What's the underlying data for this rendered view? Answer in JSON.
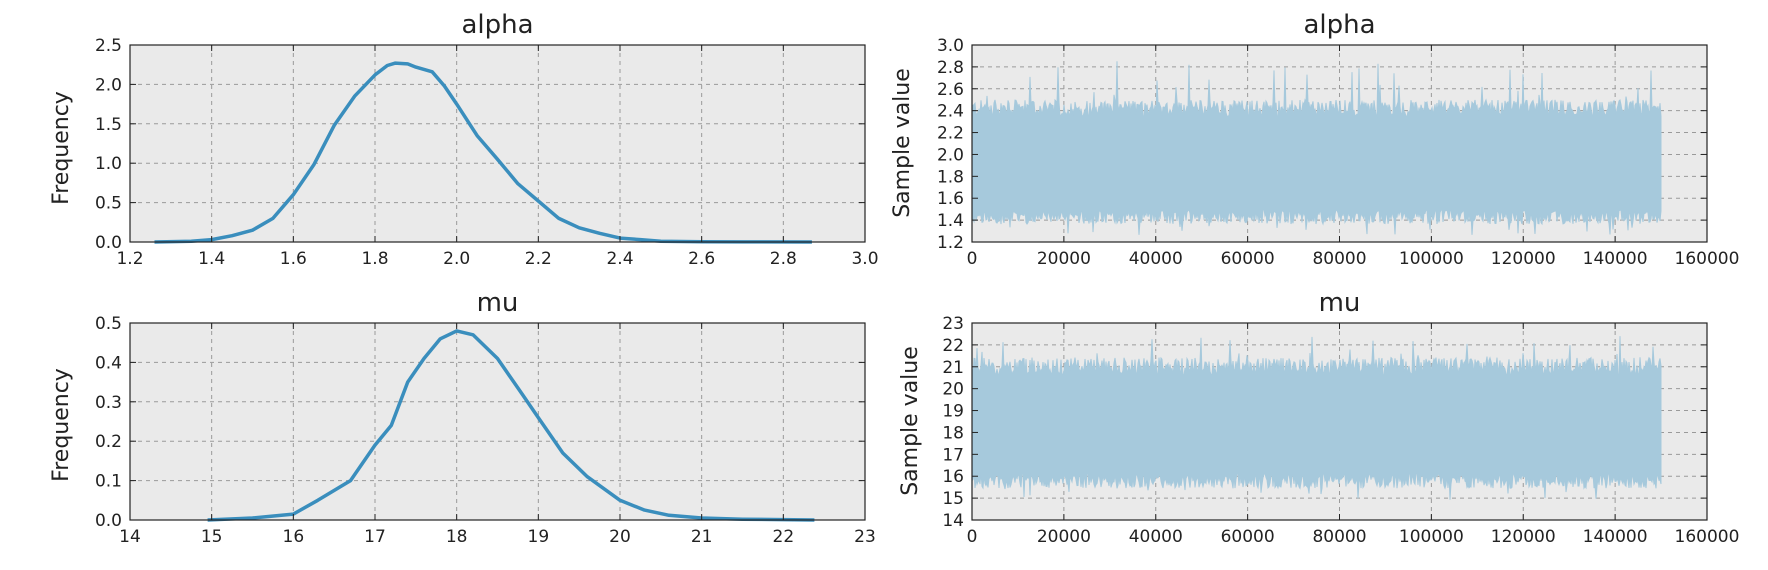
{
  "chart_data": [
    {
      "type": "line",
      "title": "alpha",
      "xlabel": "",
      "ylabel": "Frequency",
      "xlim": [
        1.2,
        3.0
      ],
      "ylim": [
        0.0,
        2.5
      ],
      "xticks": [
        "1.2",
        "1.4",
        "1.6",
        "1.8",
        "2.0",
        "2.2",
        "2.4",
        "2.6",
        "2.8",
        "3.0"
      ],
      "yticks": [
        "0.0",
        "0.5",
        "1.0",
        "1.5",
        "2.0",
        "2.5"
      ],
      "grid": true,
      "series": [
        {
          "color": "#3a8ebd",
          "x": [
            1.26,
            1.35,
            1.4,
            1.45,
            1.5,
            1.55,
            1.6,
            1.65,
            1.7,
            1.75,
            1.8,
            1.83,
            1.85,
            1.88,
            1.9,
            1.94,
            1.97,
            2.0,
            2.05,
            2.1,
            2.15,
            2.2,
            2.25,
            2.3,
            2.35,
            2.4,
            2.45,
            2.5,
            2.6,
            2.7,
            2.87
          ],
          "y": [
            0.0,
            0.01,
            0.03,
            0.08,
            0.15,
            0.3,
            0.6,
            0.98,
            1.48,
            1.85,
            2.12,
            2.24,
            2.27,
            2.26,
            2.22,
            2.16,
            1.98,
            1.75,
            1.35,
            1.05,
            0.74,
            0.52,
            0.3,
            0.18,
            0.11,
            0.05,
            0.03,
            0.01,
            0.004,
            0.001,
            0.0
          ]
        }
      ]
    },
    {
      "type": "area",
      "title": "alpha",
      "xlabel": "",
      "ylabel": "Sample value",
      "xlim": [
        0,
        160000
      ],
      "ylim": [
        1.2,
        3.0
      ],
      "xticks": [
        "0",
        "20000",
        "40000",
        "60000",
        "80000",
        "100000",
        "120000",
        "140000",
        "160000"
      ],
      "yticks": [
        "1.2",
        "1.4",
        "1.6",
        "1.8",
        "2.0",
        "2.2",
        "2.4",
        "2.6",
        "2.8",
        "3.0"
      ],
      "grid": true,
      "series": [
        {
          "color": "#a6c9dc",
          "x_range": [
            0,
            150000
          ],
          "band_low": 1.45,
          "band_high": 2.4,
          "min": 1.26,
          "max": 2.87
        }
      ]
    },
    {
      "type": "line",
      "title": "mu",
      "xlabel": "",
      "ylabel": "Frequency",
      "xlim": [
        14,
        23
      ],
      "ylim": [
        0.0,
        0.5
      ],
      "xticks": [
        "14",
        "15",
        "16",
        "17",
        "18",
        "19",
        "20",
        "21",
        "22",
        "23"
      ],
      "yticks": [
        "0.0",
        "0.1",
        "0.2",
        "0.3",
        "0.4",
        "0.5"
      ],
      "grid": true,
      "series": [
        {
          "color": "#3a8ebd",
          "x": [
            14.95,
            15.5,
            16.0,
            16.3,
            16.7,
            17.0,
            17.2,
            17.4,
            17.6,
            17.8,
            18.0,
            18.2,
            18.5,
            18.8,
            19.0,
            19.3,
            19.6,
            20.0,
            20.3,
            20.6,
            21.0,
            21.5,
            22.38
          ],
          "y": [
            0.0,
            0.005,
            0.015,
            0.05,
            0.1,
            0.19,
            0.24,
            0.35,
            0.41,
            0.46,
            0.48,
            0.47,
            0.41,
            0.32,
            0.26,
            0.17,
            0.11,
            0.05,
            0.025,
            0.012,
            0.005,
            0.002,
            0.0
          ]
        }
      ]
    },
    {
      "type": "area",
      "title": "mu",
      "xlabel": "",
      "ylabel": "Sample value",
      "xlim": [
        0,
        160000
      ],
      "ylim": [
        14,
        23
      ],
      "xticks": [
        "0",
        "20000",
        "40000",
        "60000",
        "80000",
        "100000",
        "120000",
        "140000",
        "160000"
      ],
      "yticks": [
        "14",
        "15",
        "16",
        "17",
        "18",
        "19",
        "20",
        "21",
        "22",
        "23"
      ],
      "grid": true,
      "series": [
        {
          "color": "#a6c9dc",
          "x_range": [
            0,
            150000
          ],
          "band_low": 15.9,
          "band_high": 20.9,
          "min": 14.9,
          "max": 22.4
        }
      ]
    }
  ]
}
